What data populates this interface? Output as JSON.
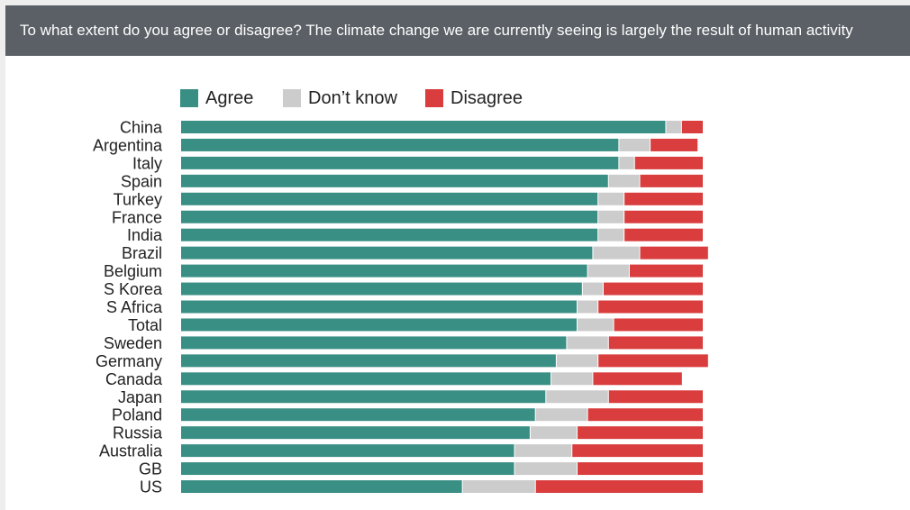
{
  "header": {
    "question": "To what extent do you agree or disagree? The climate change we are currently seeing is largely the result of human activity"
  },
  "colors": {
    "agree": "#3a8f85",
    "dont_know": "#cccccc",
    "disagree": "#d93d3d",
    "header_bg": "#5b6066"
  },
  "chart_data": {
    "type": "bar",
    "orientation": "horizontal",
    "stacked": true,
    "percent_scale": true,
    "title": "To what extent do you agree or disagree? The climate change we are currently seeing is largely the result of human activity",
    "legend": [
      "Agree",
      "Don’t know",
      "Disagree"
    ],
    "legend_position": "top-left",
    "categories": [
      "China",
      "Argentina",
      "Italy",
      "Spain",
      "Turkey",
      "France",
      "India",
      "Brazil",
      "Belgium",
      "S Korea",
      "S Africa",
      "Total",
      "Sweden",
      "Germany",
      "Canada",
      "Japan",
      "Poland",
      "Russia",
      "Australia",
      "GB",
      "US"
    ],
    "series": [
      {
        "name": "Agree",
        "values": [
          93,
          84,
          84,
          82,
          80,
          80,
          80,
          79,
          78,
          77,
          76,
          76,
          74,
          72,
          71,
          70,
          68,
          67,
          64,
          64,
          54
        ]
      },
      {
        "name": "Don’t know",
        "values": [
          3,
          6,
          3,
          6,
          5,
          5,
          5,
          9,
          8,
          4,
          4,
          7,
          8,
          8,
          8,
          12,
          10,
          9,
          11,
          12,
          14
        ]
      },
      {
        "name": "Disagree",
        "values": [
          4,
          9,
          13,
          12,
          15,
          15,
          15,
          13,
          14,
          19,
          20,
          17,
          18,
          21,
          17,
          18,
          22,
          24,
          25,
          24,
          32
        ]
      }
    ]
  }
}
